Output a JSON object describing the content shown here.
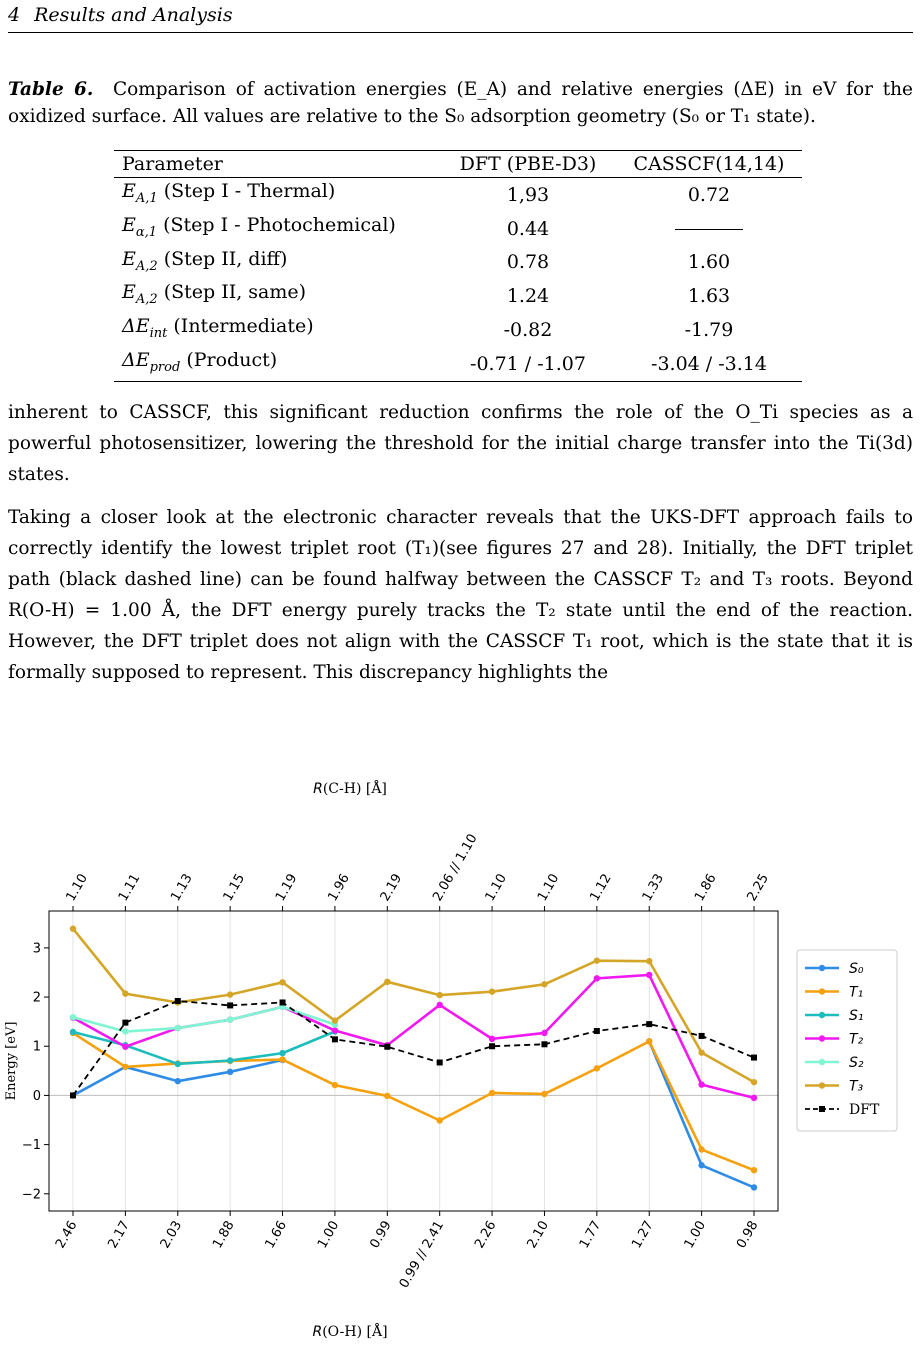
{
  "header": {
    "section_number": "4",
    "section_title": "Results and Analysis"
  },
  "caption": {
    "label": "Table 6.",
    "text": "Comparison of activation energies (E_A) and relative energies (ΔE) in eV for the oxidized surface. All values are relative to the S₀ adsorption geometry (S₀ or T₁ state)."
  },
  "table": {
    "headers": [
      "Parameter",
      "DFT (PBE-D3)",
      "CASSCF(14,14)"
    ],
    "rows": [
      {
        "sym": "E",
        "sub": "A,1",
        "desc": " (Step I - Thermal)",
        "dft": "1,93",
        "casscf": "0.72"
      },
      {
        "sym": "E",
        "sub": "α,1",
        "desc": " (Step I - Photochemical)",
        "dft": "0.44",
        "casscf": "—"
      },
      {
        "sym": "E",
        "sub": "A,2",
        "desc": " (Step II, diff)",
        "dft": "0.78",
        "casscf": "1.60"
      },
      {
        "sym": "E",
        "sub": "A,2",
        "desc": " (Step II, same)",
        "dft": "1.24",
        "casscf": "1.63"
      },
      {
        "sym": "ΔE",
        "sub": "int",
        "desc": " (Intermediate)",
        "dft": "-0.82",
        "casscf": "-1.79"
      },
      {
        "sym": "ΔE",
        "sub": "prod",
        "desc": " (Product)",
        "dft": "-0.71 / -1.07",
        "casscf": "-3.04 / -3.14"
      }
    ]
  },
  "paragraphs": [
    "inherent to CASSCF, this significant reduction confirms the role of the O_Ti species as a powerful photosensitizer, lowering the threshold for the initial charge transfer into the Ti(3d) states.",
    "Taking a closer look at the electronic character reveals that the UKS-DFT approach fails to correctly identify the lowest triplet root (T₁)(see figures 27 and 28). Initially, the DFT triplet path (black dashed line) can be found halfway between the CASSCF T₂ and T₃ roots. Beyond R(O-H) = 1.00 Å, the DFT energy purely tracks the T₂ state until the end of the reaction. However, the DFT triplet does not align with the CASSCF T₁ root, which is the state that it is formally supposed to represent. This discrepancy highlights the"
  ],
  "chart_data": {
    "type": "line",
    "top_axis_label": "R(C-H) [Å]",
    "bottom_axis_label": "R(O-H) [Å]",
    "ylabel": "Energy [eV]",
    "top_ticks": [
      "1.10",
      "1.11",
      "1.13",
      "1.15",
      "1.19",
      "1.96",
      "2.19",
      "2.06 // 1.10",
      "1.10",
      "1.10",
      "1.12",
      "1.33",
      "1.86",
      "2.25"
    ],
    "bottom_ticks": [
      "2.46",
      "2.17",
      "2.03",
      "1.88",
      "1.66",
      "1.00",
      "0.99",
      "0.99 // 2.41",
      "2.26",
      "2.10",
      "1.77",
      "1.27",
      "1.00",
      "0.98"
    ],
    "y_ticks": [
      "−2",
      "−1",
      "0",
      "1",
      "2",
      "3"
    ],
    "ylim": [
      -2.35,
      3.75
    ],
    "grid": "vertical",
    "legend_position": "right",
    "series": [
      {
        "name": "S₀",
        "color": "#2f8ce6",
        "dashed": false,
        "marker": "circle",
        "values": [
          0.0,
          0.58,
          0.29,
          0.48,
          0.72,
          null,
          null,
          null,
          null,
          null,
          null,
          1.1,
          -1.42,
          -1.87
        ]
      },
      {
        "name": "T₁",
        "color": "#f5a00d",
        "dashed": false,
        "marker": "circle",
        "values": [
          1.27,
          0.58,
          0.65,
          0.7,
          0.73,
          0.21,
          -0.01,
          -0.51,
          0.05,
          0.03,
          0.55,
          1.1,
          -1.1,
          -1.52
        ]
      },
      {
        "name": "S₁",
        "color": "#1ebdbd",
        "dashed": false,
        "marker": "circle",
        "values": [
          1.29,
          1.02,
          0.64,
          0.71,
          0.86,
          1.3,
          null,
          null,
          null,
          null,
          null,
          null,
          null,
          null
        ]
      },
      {
        "name": "T₂",
        "color": "#f218f2",
        "dashed": false,
        "marker": "circle",
        "values": [
          1.58,
          0.99,
          1.37,
          1.54,
          1.8,
          1.32,
          1.02,
          1.84,
          1.15,
          1.27,
          2.38,
          2.45,
          0.22,
          -0.05
        ]
      },
      {
        "name": "S₂",
        "color": "#7ff5d2",
        "dashed": false,
        "marker": "circle",
        "values": [
          1.59,
          1.3,
          1.37,
          1.54,
          1.8,
          1.44,
          null,
          null,
          null,
          null,
          null,
          null,
          null,
          null
        ]
      },
      {
        "name": "T₃",
        "color": "#d4a526",
        "dashed": false,
        "marker": "circle",
        "values": [
          3.39,
          2.07,
          1.89,
          2.05,
          2.3,
          1.52,
          2.31,
          2.04,
          2.11,
          2.26,
          2.74,
          2.73,
          0.87,
          0.27
        ]
      },
      {
        "name": "DFT",
        "color": "#000000",
        "dashed": true,
        "marker": "square",
        "values": [
          0.0,
          1.48,
          1.92,
          1.83,
          1.89,
          1.14,
          0.99,
          0.67,
          1.0,
          1.04,
          1.31,
          1.45,
          1.21,
          0.77
        ]
      }
    ]
  }
}
